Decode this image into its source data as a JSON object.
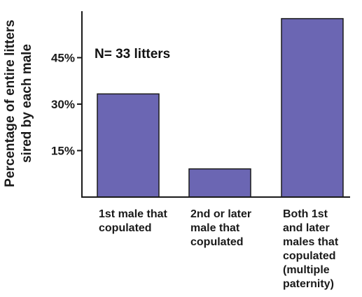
{
  "chart_data": {
    "type": "bar",
    "categories": [
      [
        "1st male that",
        "copulated"
      ],
      [
        "2nd or later",
        "male that",
        "copulated"
      ],
      [
        "Both 1st",
        "and later",
        "males that",
        "copulated",
        "(multiple",
        "paternity)"
      ]
    ],
    "values": [
      33.3,
      9.1,
      57.6
    ],
    "ylabel_lines": [
      "Percentage of entire litters",
      "sired by each male"
    ],
    "ylim": [
      0,
      60
    ],
    "yticks": [
      15,
      30,
      45
    ],
    "ytick_labels": [
      "15%",
      "30%",
      "45%"
    ],
    "annotation": "N= 33 litters",
    "legend": false,
    "grid": false,
    "colors": {
      "bar_fill": "#6b66b3",
      "bar_stroke": "#1a1a1a",
      "axis": "#1a1a1a"
    }
  }
}
